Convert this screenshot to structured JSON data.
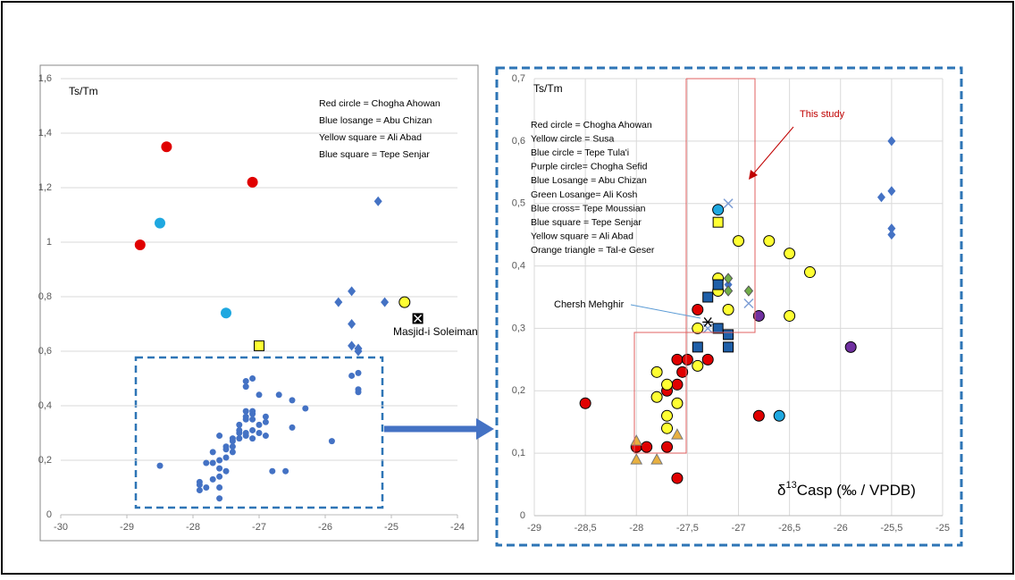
{
  "chart_data": [
    {
      "type": "scatter",
      "title": "Ts/Tm",
      "grid": "y",
      "xlim": [
        -30,
        -24
      ],
      "xticks": [
        -30,
        -29,
        -28,
        -27,
        -26,
        -25,
        -24
      ],
      "ylim": [
        0,
        1.6
      ],
      "yticks": [
        0,
        {
          "value": 0.2,
          "label": "0,2"
        },
        {
          "value": 0.4,
          "label": "0,4"
        },
        {
          "value": 0.6,
          "label": "0,6"
        },
        {
          "value": 0.8,
          "label": "0,8"
        },
        1,
        {
          "value": 1.2,
          "label": "1,2"
        },
        {
          "value": 1.4,
          "label": "1,4"
        },
        {
          "value": 1.6,
          "label": "1,6"
        }
      ],
      "legend_lines": [
        "Red circle = Chogha Ahowan",
        "Blue losange = Abu Chizan",
        "Yellow square = Ali Abad",
        "Blue square = Tepe Senjar"
      ],
      "series": [
        {
          "marker": "dot",
          "color": "#4472c4",
          "x": [
            -28.5,
            -27.9,
            -27.9,
            -27.9,
            -27.8,
            -27.7,
            -27.7,
            -27.7,
            -27.6,
            -27.6,
            -27.6,
            -27.6,
            -27.6,
            -27.5,
            -27.5,
            -27.5,
            -27.5,
            -27.4,
            -27.4,
            -27.4,
            -27.3,
            -27.3,
            -27.3,
            -27.3,
            -27.2,
            -27.2,
            -27.2,
            -27.2,
            -27.1,
            -27.1,
            -27.1,
            -27.1,
            -27.1,
            -27,
            -27,
            -27,
            -27.2,
            -27.2,
            -27.1,
            -26.9,
            -26.9,
            -26.8,
            -26.7,
            -26.6,
            -26.5,
            -26.5,
            -26.3,
            -26.9,
            -25.9,
            -25.6,
            -25.5,
            -25.5,
            -25.5,
            -27.6,
            -27.8,
            -27.4,
            -27.2
          ],
          "y": [
            0.18,
            0.12,
            0.11,
            0.09,
            0.1,
            0.13,
            0.19,
            0.23,
            0.1,
            0.14,
            0.17,
            0.2,
            0.06,
            0.16,
            0.21,
            0.25,
            0.24,
            0.23,
            0.25,
            0.27,
            0.28,
            0.3,
            0.33,
            0.31,
            0.29,
            0.3,
            0.35,
            0.38,
            0.35,
            0.37,
            0.38,
            0.31,
            0.28,
            0.33,
            0.3,
            0.44,
            0.47,
            0.49,
            0.5,
            0.34,
            0.36,
            0.16,
            0.44,
            0.16,
            0.42,
            0.32,
            0.39,
            0.29,
            0.27,
            0.51,
            0.52,
            0.46,
            0.45,
            0.29,
            0.19,
            0.28,
            0.36
          ]
        },
        {
          "marker": "circle",
          "color": "#e00000",
          "x": [
            -28.4,
            -27.1,
            -28.8
          ],
          "y": [
            1.35,
            1.22,
            0.99
          ]
        },
        {
          "marker": "circle",
          "color": "#1fa8e0",
          "x": [
            -28.5,
            -27.5
          ],
          "y": [
            1.07,
            0.74
          ]
        },
        {
          "marker": "square",
          "color": "#ffff33",
          "stroke": "#000",
          "x": [
            -27
          ],
          "y": [
            0.62
          ]
        },
        {
          "marker": "circle",
          "color": "#ffff33",
          "stroke": "#000",
          "x": [
            -24.8
          ],
          "y": [
            0.78
          ]
        },
        {
          "marker": "diamond",
          "color": "#4472c4",
          "x": [
            -25.2,
            -25.1,
            -25.8,
            -25.6,
            -25.6,
            -25.6,
            -25.5,
            -25.5
          ],
          "y": [
            1.15,
            0.78,
            0.78,
            0.82,
            0.7,
            0.62,
            0.6,
            0.61
          ]
        },
        {
          "marker": "xbox",
          "color": "#000",
          "label": "Masjid-i Soleiman",
          "x": [
            -24.6
          ],
          "y": [
            0.72
          ]
        }
      ]
    },
    {
      "type": "scatter",
      "title": "Ts/Tm",
      "grid": "both",
      "x_label_symbol": "δ",
      "x_label_superscript": "13",
      "x_label_rest": "Casp (‰ / VPDB)",
      "annotation": "This study",
      "xlim": [
        -29,
        -25
      ],
      "xticks": [
        -29,
        {
          "value": -28.5,
          "label": "-28,5"
        },
        -28,
        {
          "value": -27.5,
          "label": "-27,5"
        },
        -27,
        {
          "value": -26.5,
          "label": "-26,5"
        },
        -26,
        {
          "value": -25.5,
          "label": "-25,5"
        },
        -25
      ],
      "ylim": [
        0,
        0.7
      ],
      "yticks": [
        0,
        {
          "value": 0.1,
          "label": "0,1"
        },
        {
          "value": 0.2,
          "label": "0,2"
        },
        {
          "value": 0.3,
          "label": "0,3"
        },
        {
          "value": 0.4,
          "label": "0,4"
        },
        {
          "value": 0.5,
          "label": "0,5"
        },
        {
          "value": 0.6,
          "label": "0,6"
        },
        {
          "value": 0.7,
          "label": "0,7"
        }
      ],
      "legend_lines": [
        "Red circle = Chogha Ahowan",
        "Yellow circle = Susa",
        "Blue circle = Tepe Tula'i",
        "Purple circle= Chogha Sefid",
        "Blue Losange = Abu Chizan",
        "Green Losange= Ali Kosh",
        "Blue cross= Tepe Moussian",
        "Blue square = Tepe Senjar",
        "Yellow square = Ali Abad",
        "Orange triangle = Tal-e Geser"
      ],
      "series": [
        {
          "marker": "circle",
          "color": "#e00000",
          "stroke": "#000",
          "x": [
            -28.5,
            -28,
            -27.9,
            -27.7,
            -27.6,
            -27.7,
            -27.6,
            -27.55,
            -27.6,
            -27.5,
            -27.3,
            -27.4,
            -26.8
          ],
          "y": [
            0.18,
            0.11,
            0.11,
            0.11,
            0.06,
            0.2,
            0.21,
            0.23,
            0.25,
            0.25,
            0.25,
            0.33,
            0.16
          ]
        },
        {
          "marker": "circle",
          "color": "#ffff33",
          "stroke": "#000",
          "x": [
            -27.8,
            -27.8,
            -27.7,
            -27.7,
            -27.7,
            -27.6,
            -27.4,
            -27.4,
            -27.2,
            -27.2,
            -27.1,
            -27,
            -26.7,
            -26.5,
            -26.5,
            -26.3
          ],
          "y": [
            0.23,
            0.19,
            0.21,
            0.16,
            0.14,
            0.18,
            0.24,
            0.3,
            0.38,
            0.36,
            0.33,
            0.44,
            0.44,
            0.42,
            0.32,
            0.39
          ]
        },
        {
          "marker": "circle",
          "color": "#1fa8e0",
          "stroke": "#000",
          "x": [
            -27.2,
            -26.6
          ],
          "y": [
            0.49,
            0.16
          ]
        },
        {
          "marker": "circle",
          "color": "#7030a0",
          "stroke": "#000",
          "x": [
            -26.8,
            -25.9
          ],
          "y": [
            0.32,
            0.27
          ]
        },
        {
          "marker": "diamond",
          "color": "#4472c4",
          "x": [
            -25.5,
            -25.5,
            -25.6,
            -25.5,
            -25.5,
            -27.1
          ],
          "y": [
            0.6,
            0.52,
            0.51,
            0.46,
            0.45,
            0.37
          ]
        },
        {
          "marker": "diamond",
          "color": "#70ad47",
          "stroke": "#555",
          "x": [
            -27.1,
            -27.1,
            -26.9
          ],
          "y": [
            0.38,
            0.36,
            0.36
          ]
        },
        {
          "marker": "cross",
          "color": "#7f9fd5",
          "x": [
            -27.1,
            -26.9,
            -27.3
          ],
          "y": [
            0.5,
            0.34,
            0.3
          ]
        },
        {
          "marker": "square",
          "color": "#1f5fa8",
          "stroke": "#000",
          "x": [
            -27.3,
            -27.2,
            -27.2,
            -27.4,
            -27.1,
            -27.1
          ],
          "y": [
            0.35,
            0.37,
            0.3,
            0.27,
            0.27,
            0.29
          ]
        },
        {
          "marker": "square",
          "color": "#ffff33",
          "stroke": "#000",
          "x": [
            -27.2
          ],
          "y": [
            0.47
          ]
        },
        {
          "marker": "triangle",
          "color": "#e8b040",
          "stroke": "#777",
          "x": [
            -28,
            -28,
            -27.8,
            -27.6
          ],
          "y": [
            0.12,
            0.09,
            0.09,
            0.13
          ]
        },
        {
          "marker": "asterisk",
          "color": "#000",
          "label": "Chersh Mehghir",
          "x": [
            -27.3
          ],
          "y": [
            0.31
          ]
        }
      ]
    }
  ]
}
